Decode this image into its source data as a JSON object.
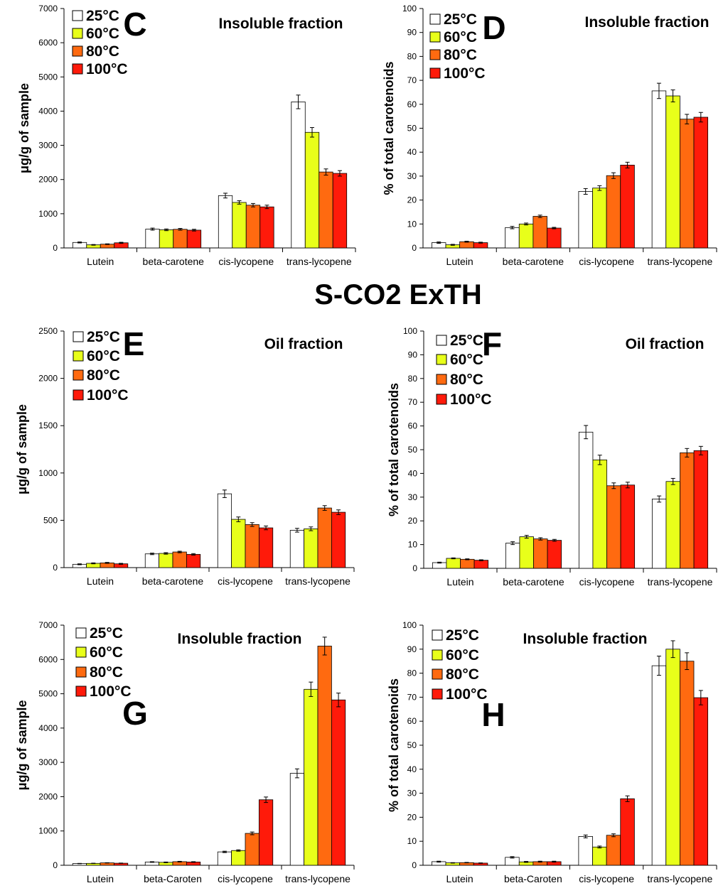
{
  "figure": {
    "section_title": "S-CO2 ExTH",
    "series_colors": [
      "#ffffff",
      "#e8ff1a",
      "#ff6a10",
      "#ff1a0a"
    ]
  },
  "chart_data": [
    {
      "id": "C",
      "type": "bar",
      "letter": "C",
      "title": "Insoluble fraction",
      "ylabel": "μg/g of sample",
      "ylim": [
        0,
        7000
      ],
      "yticks": [
        "0",
        "1000",
        "2000",
        "3000",
        "4000",
        "5000",
        "6000",
        "7000"
      ],
      "categories": [
        "Lutein",
        "beta-carotene",
        "cis-lycopene",
        "trans-lycopene"
      ],
      "series": [
        {
          "name": "25°C",
          "values": [
            160,
            550,
            1530,
            4270
          ],
          "errors": [
            15,
            30,
            70,
            200
          ]
        },
        {
          "name": "60°C",
          "values": [
            90,
            530,
            1330,
            3380
          ],
          "errors": [
            10,
            25,
            50,
            140
          ]
        },
        {
          "name": "80°C",
          "values": [
            110,
            545,
            1250,
            2220
          ],
          "errors": [
            10,
            25,
            50,
            90
          ]
        },
        {
          "name": "100°C",
          "values": [
            150,
            520,
            1200,
            2180
          ],
          "errors": [
            15,
            25,
            50,
            80
          ]
        }
      ]
    },
    {
      "id": "D",
      "type": "bar",
      "letter": "D",
      "title": "Insoluble fraction",
      "ylabel": "% of total carotenoids",
      "ylim": [
        0,
        100
      ],
      "yticks": [
        "0",
        "10",
        "20",
        "30",
        "40",
        "50",
        "60",
        "70",
        "80",
        "90",
        "100"
      ],
      "categories": [
        "Lutein",
        "beta-carotene",
        "cis-lycopene",
        "trans-lycopene"
      ],
      "series": [
        {
          "name": "25°C",
          "values": [
            2.2,
            8.5,
            23.6,
            65.6
          ],
          "errors": [
            0.3,
            0.5,
            1.2,
            3.2
          ]
        },
        {
          "name": "60°C",
          "values": [
            1.3,
            10,
            25,
            63.5
          ],
          "errors": [
            0.2,
            0.4,
            1.0,
            2.5
          ]
        },
        {
          "name": "80°C",
          "values": [
            2.6,
            13.2,
            30.2,
            53.8
          ],
          "errors": [
            0.2,
            0.5,
            1.2,
            2.0
          ]
        },
        {
          "name": "100°C",
          "values": [
            2.2,
            8.3,
            34.6,
            54.6
          ],
          "errors": [
            0.2,
            0.3,
            1.2,
            2.0
          ]
        }
      ]
    },
    {
      "id": "E",
      "type": "bar",
      "letter": "E",
      "title": "Oil fraction",
      "ylabel": "μg/g of sample",
      "ylim": [
        0,
        2500
      ],
      "yticks": [
        "0",
        "500",
        "1000",
        "1500",
        "2000",
        "2500"
      ],
      "categories": [
        "Lutein",
        "beta-carotene",
        "cis-lycopene",
        "trans-lycopene"
      ],
      "series": [
        {
          "name": "25°C",
          "values": [
            35,
            145,
            780,
            395
          ],
          "errors": [
            5,
            8,
            40,
            20
          ]
        },
        {
          "name": "60°C",
          "values": [
            45,
            150,
            510,
            410
          ],
          "errors": [
            5,
            8,
            25,
            20
          ]
        },
        {
          "name": "80°C",
          "values": [
            50,
            165,
            455,
            630
          ],
          "errors": [
            5,
            8,
            20,
            25
          ]
        },
        {
          "name": "100°C",
          "values": [
            40,
            140,
            420,
            585
          ],
          "errors": [
            5,
            8,
            20,
            25
          ]
        }
      ]
    },
    {
      "id": "F",
      "type": "bar",
      "letter": "F",
      "title": "Oil fraction",
      "ylabel": "% of total carotenoids",
      "ylim": [
        0,
        100
      ],
      "yticks": [
        "0",
        "10",
        "20",
        "30",
        "40",
        "50",
        "60",
        "70",
        "80",
        "90",
        "100"
      ],
      "categories": [
        "Lutein",
        "beta-carotene",
        "cis-lycopene",
        "trans-lycopene"
      ],
      "series": [
        {
          "name": "25°C",
          "values": [
            2.4,
            10.6,
            57.4,
            29.2
          ],
          "errors": [
            0.2,
            0.6,
            2.8,
            1.3
          ]
        },
        {
          "name": "60°C",
          "values": [
            4.2,
            13.3,
            45.7,
            36.6
          ],
          "errors": [
            0.2,
            0.6,
            2.0,
            1.3
          ]
        },
        {
          "name": "80°C",
          "values": [
            3.8,
            12.4,
            34.8,
            48.7
          ],
          "errors": [
            0.2,
            0.5,
            1.2,
            1.8
          ]
        },
        {
          "name": "100°C",
          "values": [
            3.4,
            11.8,
            35.1,
            49.6
          ],
          "errors": [
            0.2,
            0.4,
            1.2,
            1.8
          ]
        }
      ]
    },
    {
      "id": "G",
      "type": "bar",
      "letter": "G",
      "title": "Insoluble fraction",
      "ylabel": "μg/g of sample",
      "ylim": [
        0,
        7000
      ],
      "yticks": [
        "0",
        "1000",
        "2000",
        "3000",
        "4000",
        "5000",
        "6000",
        "7000"
      ],
      "categories": [
        "Lutein",
        "beta-Caroten",
        "cis-lycopene",
        "trans-lycopene"
      ],
      "series": [
        {
          "name": "25°C",
          "values": [
            50,
            95,
            390,
            2680
          ],
          "errors": [
            5,
            10,
            20,
            130
          ]
        },
        {
          "name": "60°C",
          "values": [
            55,
            85,
            430,
            5130
          ],
          "errors": [
            5,
            10,
            20,
            210
          ]
        },
        {
          "name": "80°C",
          "values": [
            70,
            105,
            930,
            6390
          ],
          "errors": [
            5,
            10,
            40,
            260
          ]
        },
        {
          "name": "100°C",
          "values": [
            60,
            95,
            1910,
            4820
          ],
          "errors": [
            5,
            10,
            80,
            200
          ]
        }
      ]
    },
    {
      "id": "H",
      "type": "bar",
      "letter": "H",
      "title": "Insoluble fraction",
      "ylabel": "% of total carotenoids",
      "ylim": [
        0,
        100
      ],
      "yticks": [
        "0",
        "10",
        "20",
        "30",
        "40",
        "50",
        "60",
        "70",
        "80",
        "90",
        "100"
      ],
      "categories": [
        "Lutein",
        "beta-Caroten",
        "cis-lycopene",
        "trans-lycopene"
      ],
      "series": [
        {
          "name": "25°C",
          "values": [
            1.5,
            3.3,
            12,
            83.1
          ],
          "errors": [
            0.2,
            0.3,
            0.6,
            4.0
          ]
        },
        {
          "name": "60°C",
          "values": [
            1.0,
            1.4,
            7.6,
            90
          ],
          "errors": [
            0.1,
            0.2,
            0.4,
            3.5
          ]
        },
        {
          "name": "80°C",
          "values": [
            1.1,
            1.5,
            12.5,
            85
          ],
          "errors": [
            0.1,
            0.2,
            0.6,
            3.5
          ]
        },
        {
          "name": "100°C",
          "values": [
            0.9,
            1.5,
            27.7,
            69.8
          ],
          "errors": [
            0.1,
            0.2,
            1.2,
            3.0
          ]
        }
      ]
    }
  ]
}
